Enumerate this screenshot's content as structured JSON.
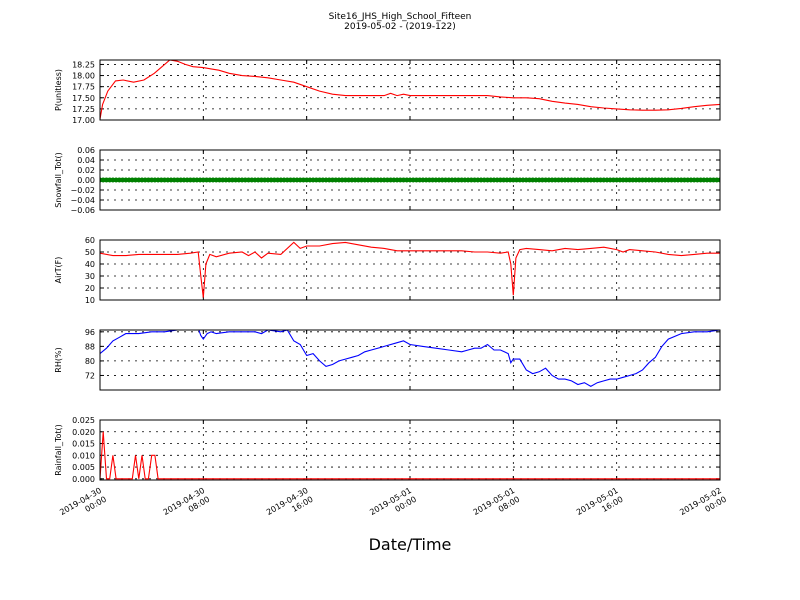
{
  "figure": {
    "title": "Site16_JHS_High_School_Fifteen",
    "subtitle": "2019-05-02 - (2019-122)",
    "xlabel": "Date/Time"
  },
  "chart_data": [
    {
      "type": "line",
      "ylabel": "P(unitless)",
      "ylim": [
        17.0,
        18.35
      ],
      "yticks": [
        "17.00",
        "17.25",
        "17.50",
        "17.75",
        "18.00",
        "18.25"
      ],
      "xlim": [
        0,
        48
      ],
      "grid": true,
      "series": [
        {
          "color": "#ff0000",
          "x": [
            0,
            0.2,
            0.6,
            1.2,
            1.8,
            2.6,
            3.4,
            4.2,
            4.8,
            5.4,
            6.0,
            6.6,
            7.2,
            8.0,
            8.6,
            9.2,
            10.0,
            11.0,
            12.0,
            13.0,
            14.0,
            15.0,
            16.0,
            17.0,
            18.0,
            19.0,
            20.0,
            21.0,
            22.0,
            22.5,
            23.0,
            23.5,
            24.0,
            25.0,
            26.0,
            27.0,
            28.0,
            29.0,
            30.0,
            31.0,
            32.0,
            33.0,
            34.0,
            35.0,
            36.0,
            37.0,
            38.0,
            39.0,
            40.0,
            41.0,
            42.0,
            43.0,
            44.0,
            45.0,
            46.0,
            47.0,
            48.0
          ],
          "values": [
            17.02,
            17.35,
            17.65,
            17.88,
            17.9,
            17.85,
            17.9,
            18.05,
            18.2,
            18.35,
            18.32,
            18.25,
            18.2,
            18.18,
            18.15,
            18.12,
            18.05,
            18.0,
            17.98,
            17.95,
            17.9,
            17.85,
            17.75,
            17.65,
            17.58,
            17.55,
            17.55,
            17.55,
            17.55,
            17.6,
            17.55,
            17.58,
            17.55,
            17.55,
            17.55,
            17.55,
            17.55,
            17.55,
            17.55,
            17.52,
            17.5,
            17.5,
            17.48,
            17.42,
            17.38,
            17.35,
            17.3,
            17.27,
            17.25,
            17.23,
            17.22,
            17.22,
            17.23,
            17.26,
            17.3,
            17.33,
            17.35
          ]
        }
      ]
    },
    {
      "type": "scatter",
      "ylabel": "Snowfall_Tot()",
      "ylim": [
        -0.06,
        0.06
      ],
      "yticks": [
        "−0.06",
        "−0.04",
        "−0.02",
        "0.00",
        "0.02",
        "0.04",
        "0.06"
      ],
      "xlim": [
        0,
        48
      ],
      "grid": true,
      "series": [
        {
          "color": "#008000",
          "constant": 0.0,
          "x_start": 0,
          "x_end": 48,
          "x_step": 0.25
        }
      ]
    },
    {
      "type": "line",
      "ylabel": "AirT(F)",
      "ylim": [
        10,
        60
      ],
      "yticks": [
        "10",
        "20",
        "30",
        "40",
        "50",
        "60"
      ],
      "xlim": [
        0,
        48
      ],
      "grid": true,
      "series": [
        {
          "color": "#ff0000",
          "x": [
            0,
            1,
            2,
            3,
            4,
            5,
            6,
            7,
            7.6,
            7.8,
            8.0,
            8.2,
            8.5,
            9.0,
            10.0,
            11.0,
            11.5,
            12.0,
            12.5,
            13.0,
            14.0,
            15.0,
            15.5,
            16.0,
            17.0,
            18.0,
            19.0,
            20.0,
            21.0,
            22.0,
            23.0,
            24.0,
            25.0,
            26.0,
            27.0,
            28.0,
            29.0,
            30.0,
            31.0,
            31.6,
            31.8,
            32.0,
            32.2,
            32.5,
            33.0,
            34.0,
            35.0,
            36.0,
            37.0,
            38.0,
            39.0,
            40.0,
            40.5,
            41.0,
            42.0,
            43.0,
            44.0,
            45.0,
            46.0,
            47.0,
            48.0
          ],
          "values": [
            49,
            47,
            47,
            48,
            48,
            48,
            48,
            49,
            50,
            30,
            12,
            40,
            48,
            46,
            49,
            50,
            47,
            50,
            45,
            49,
            48,
            58,
            53,
            55,
            55,
            57,
            58,
            56,
            54,
            53,
            51,
            51,
            51,
            51,
            51,
            51,
            50,
            50,
            49,
            50,
            40,
            14,
            45,
            52,
            53,
            52,
            51,
            53,
            52,
            53,
            54,
            52,
            50,
            52,
            51,
            50,
            48,
            47,
            48,
            49,
            49
          ]
        }
      ]
    },
    {
      "type": "line",
      "ylabel": "RH(%)",
      "ylim": [
        64,
        97
      ],
      "yticks": [
        "72",
        "80",
        "88",
        "96"
      ],
      "xlim": [
        0,
        48
      ],
      "grid": true,
      "series": [
        {
          "color": "#0000ff",
          "x": [
            0,
            0.5,
            1.0,
            1.5,
            2.0,
            3.0,
            4.0,
            5.0,
            6.0,
            7.0,
            7.6,
            7.8,
            8.0,
            8.3,
            8.6,
            9.0,
            10.0,
            11.0,
            12.0,
            12.5,
            13.0,
            14.0,
            14.5,
            15.0,
            15.5,
            16.0,
            16.5,
            17.0,
            17.5,
            18.0,
            18.5,
            19.0,
            19.5,
            20.0,
            20.5,
            21.0,
            22.0,
            23.0,
            23.5,
            24.0,
            25.0,
            26.0,
            27.0,
            28.0,
            28.5,
            29.0,
            29.5,
            30.0,
            30.5,
            31.0,
            31.3,
            31.6,
            31.8,
            32.0,
            32.5,
            33.0,
            33.5,
            34.0,
            34.5,
            35.0,
            35.5,
            36.0,
            36.5,
            37.0,
            37.5,
            38.0,
            38.5,
            39.0,
            39.5,
            40.0,
            40.5,
            41.0,
            41.5,
            42.0,
            42.5,
            43.0,
            43.5,
            44.0,
            45.0,
            46.0,
            47.0,
            48.0
          ],
          "values": [
            84,
            87,
            91,
            93,
            95,
            95,
            96,
            96,
            97,
            97,
            98,
            94,
            92,
            95,
            96,
            95,
            96,
            96,
            96,
            95,
            97,
            96,
            97,
            91,
            89,
            83,
            84,
            80,
            77,
            78,
            80,
            81,
            82,
            83,
            85,
            86,
            88,
            90,
            91,
            89,
            88,
            87,
            86,
            85,
            86,
            87,
            87,
            89,
            86,
            86,
            85,
            84,
            79,
            81,
            81,
            75,
            73,
            74,
            76,
            72,
            70,
            70,
            69,
            67,
            68,
            66,
            68,
            69,
            70,
            70,
            71,
            72,
            73,
            75,
            79,
            82,
            88,
            92,
            95,
            96,
            96,
            97
          ]
        }
      ]
    },
    {
      "type": "line",
      "ylabel": "Rainfall_Tot()",
      "ylim": [
        -0.0005,
        0.025
      ],
      "yticks": [
        "0.000",
        "0.005",
        "0.010",
        "0.015",
        "0.020",
        "0.025"
      ],
      "xlim": [
        0,
        48
      ],
      "grid": true,
      "xticks": [
        "2019-04-30\n00:00",
        "2019-04-30\n08:00",
        "2019-04-30\n16:00",
        "2019-05-01\n00:00",
        "2019-05-01\n08:00",
        "2019-05-01\n16:00",
        "2019-05-02\n00:00"
      ],
      "series": [
        {
          "color": "#ff0000",
          "x": [
            0,
            0.25,
            0.5,
            0.75,
            1.0,
            1.25,
            1.5,
            2.5,
            2.75,
            3.0,
            3.25,
            3.5,
            3.75,
            4.0,
            4.25,
            4.5,
            4.75,
            5.0,
            48.0
          ],
          "values": [
            0.0,
            0.02,
            0.0,
            0.0,
            0.01,
            0.0,
            0.0,
            0.0,
            0.01,
            0.0,
            0.01,
            0.0,
            0.0,
            0.01,
            0.01,
            0.0,
            0.0,
            0.0,
            0.0
          ]
        }
      ]
    }
  ]
}
